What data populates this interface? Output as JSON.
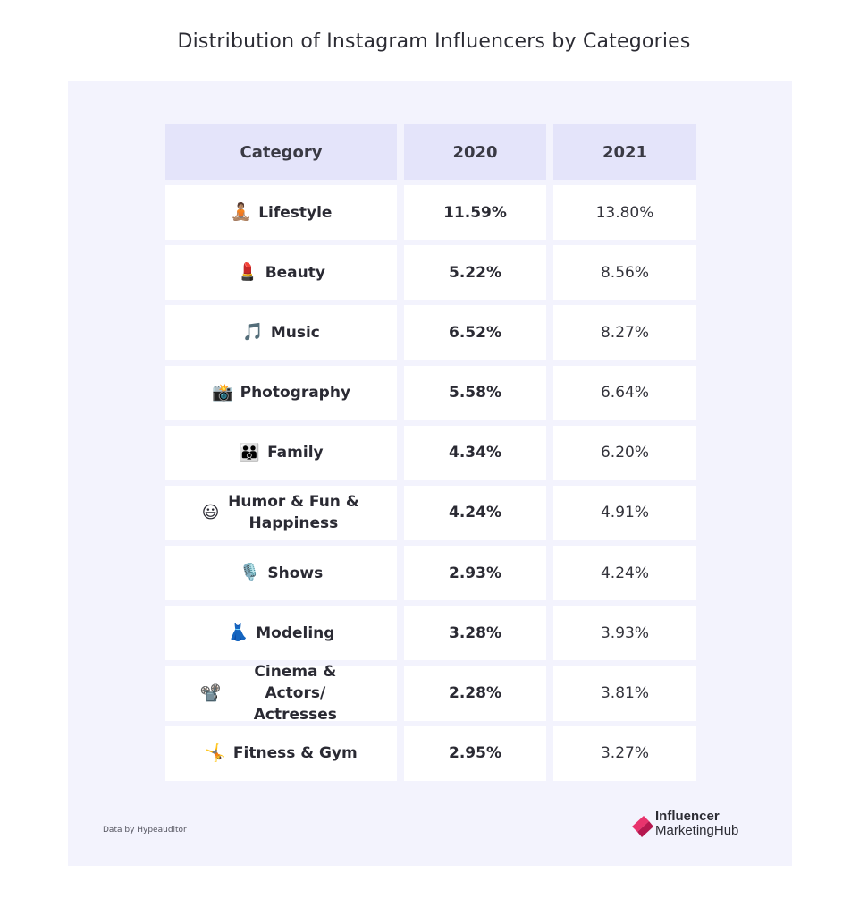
{
  "title": "Distribution of Instagram Influencers by Categories",
  "chart_data": {
    "type": "table",
    "title": "Distribution of Instagram Influencers by Categories",
    "columns": [
      "Category",
      "2020",
      "2021"
    ],
    "rows": [
      {
        "icon": "🧘🏽",
        "category": "Lifestyle",
        "y2020": "11.59%",
        "y2021": "13.80%"
      },
      {
        "icon": "💄",
        "category": "Beauty",
        "y2020": "5.22%",
        "y2021": "8.56%"
      },
      {
        "icon": "🎵",
        "category": "Music",
        "y2020": "6.52%",
        "y2021": "8.27%"
      },
      {
        "icon": "📸",
        "category": "Photography",
        "y2020": "5.58%",
        "y2021": "6.64%"
      },
      {
        "icon": "👪",
        "category": "Family",
        "y2020": "4.34%",
        "y2021": "6.20%"
      },
      {
        "icon": "😃",
        "category": "Humor & Fun & Happiness",
        "y2020": "4.24%",
        "y2021": "4.91%"
      },
      {
        "icon": "🎙️",
        "category": "Shows",
        "y2020": "2.93%",
        "y2021": "4.24%"
      },
      {
        "icon": "👗",
        "category": "Modeling",
        "y2020": "3.28%",
        "y2021": "3.93%"
      },
      {
        "icon": "📽️",
        "category": "Cinema & Actors/ Actresses",
        "y2020": "2.28%",
        "y2021": "3.81%"
      },
      {
        "icon": "🤸",
        "category": "Fitness & Gym",
        "y2020": "2.95%",
        "y2021": "3.27%"
      }
    ]
  },
  "footer": {
    "source": "Data by Hypeauditor",
    "logo_line1": "Influencer",
    "logo_line2": "MarketingHub",
    "logo_colors": [
      "#e8336d",
      "#b5174f"
    ]
  }
}
